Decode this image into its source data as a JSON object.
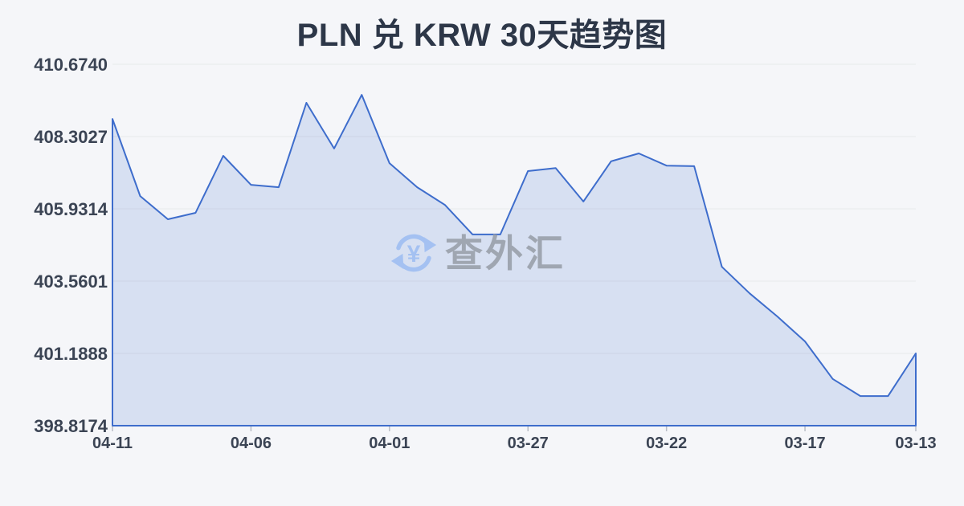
{
  "title": "PLN 兑 KRW 30天趋势图",
  "watermark": {
    "text": "查外汇",
    "symbol": "¥"
  },
  "colors": {
    "background": "#f5f6f9",
    "title_text": "#2d3748",
    "axis_text": "#3b4454",
    "grid_line": "#e8e9ec",
    "line": "#3e6dcc",
    "area_fill": "rgba(62,109,204,0.16)",
    "watermark_text": "#9aa0ab",
    "watermark_icon": "#a4c1f2",
    "tick_mark": "#b9bdc6"
  },
  "chart_data": {
    "type": "area",
    "title": "PLN 兑 KRW 30天趋势图",
    "x": [
      "04-11",
      "04-10",
      "04-09",
      "04-08",
      "04-07",
      "04-06",
      "04-05",
      "04-04",
      "04-03",
      "04-02",
      "04-01",
      "03-31",
      "03-30",
      "03-29",
      "03-28",
      "03-27",
      "03-26",
      "03-25",
      "03-24",
      "03-23",
      "03-22",
      "03-21",
      "03-20",
      "03-19",
      "03-18",
      "03-17",
      "03-16",
      "03-15",
      "03-14",
      "03-13"
    ],
    "values": [
      408.88,
      406.35,
      405.59,
      405.8,
      407.67,
      406.72,
      406.64,
      409.41,
      407.91,
      409.67,
      407.43,
      406.64,
      406.06,
      405.09,
      405.09,
      407.17,
      407.27,
      406.17,
      407.49,
      407.75,
      407.35,
      407.33,
      404.03,
      403.16,
      402.4,
      401.58,
      400.35,
      399.79,
      399.79,
      401.19
    ],
    "x_tick_labels": [
      "04-11",
      "04-06",
      "04-01",
      "03-27",
      "03-22",
      "03-17",
      "03-13"
    ],
    "y_ticks": [
      "410.6740",
      "408.3027",
      "405.9314",
      "403.5601",
      "401.1888",
      "398.8174"
    ],
    "ylim": [
      398.8174,
      410.674
    ],
    "xlabel": "",
    "ylabel": "",
    "grid": true,
    "legend_position": "none"
  }
}
